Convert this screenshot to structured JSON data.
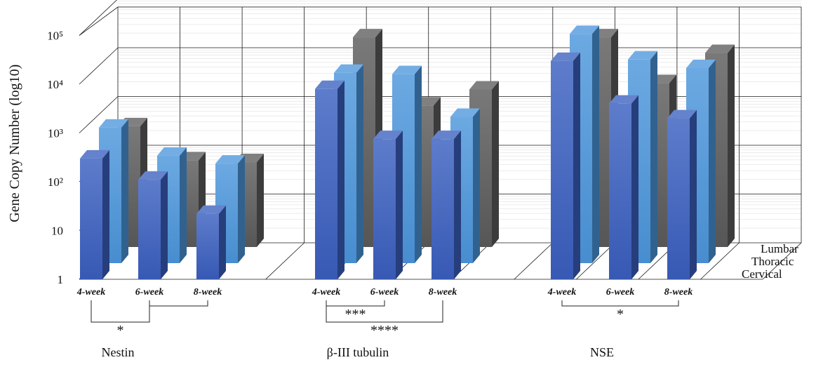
{
  "chart_data": {
    "type": "bar",
    "subtype": "3d-clustered-column",
    "ylabel": "Gene Copy Number (log10)",
    "yscale": "log",
    "ylim": [
      1,
      100000
    ],
    "yticks": [
      {
        "label": "1",
        "value": 1
      },
      {
        "label": "10",
        "value": 10
      },
      {
        "label": "10²",
        "value": 100
      },
      {
        "label": "10³",
        "value": 1000
      },
      {
        "label": "10⁴",
        "value": 10000
      },
      {
        "label": "10⁵",
        "value": 100000
      }
    ],
    "depth_labels": [
      "Lumbar",
      "Thoracic",
      "Cervical"
    ],
    "series": [
      {
        "name": "Cervical",
        "color": "#3a5fbf"
      },
      {
        "name": "Thoracic",
        "color": "#4c96dc"
      },
      {
        "name": "Lumbar",
        "color": "#5c5c5c"
      }
    ],
    "groups": [
      {
        "name": "Nestin",
        "categories": [
          "4-week",
          "6-week",
          "8-week"
        ],
        "values": {
          "Cervical": [
            300,
            110,
            22
          ],
          "Thoracic": [
            600,
            160,
            110
          ],
          "Lumbar": [
            300,
            60,
            55
          ]
        },
        "significance": [
          {
            "from": 0,
            "to": 1,
            "label": "*",
            "level": 2
          },
          {
            "from": 1,
            "to": 2,
            "label": "",
            "level": 1
          }
        ]
      },
      {
        "name": "β-III tubulin",
        "categories": [
          "4-week",
          "6-week",
          "8-week"
        ],
        "values": {
          "Cervical": [
            8000,
            750,
            750
          ],
          "Thoracic": [
            8000,
            7500,
            1000
          ],
          "Lumbar": [
            20000,
            800,
            1700
          ]
        },
        "significance": [
          {
            "from": 0,
            "to": 1,
            "label": "***",
            "level": 1
          },
          {
            "from": 0,
            "to": 2,
            "label": "****",
            "level": 2
          }
        ]
      },
      {
        "name": "NSE",
        "categories": [
          "4-week",
          "6-week",
          "8-week"
        ],
        "values": {
          "Cervical": [
            30000,
            4000,
            2000
          ],
          "Thoracic": [
            50000,
            15000,
            10000
          ],
          "Lumbar": [
            20000,
            2300,
            9500
          ]
        },
        "significance": [
          {
            "from": 0,
            "to": 2,
            "label": "*",
            "level": 1
          }
        ]
      }
    ]
  }
}
